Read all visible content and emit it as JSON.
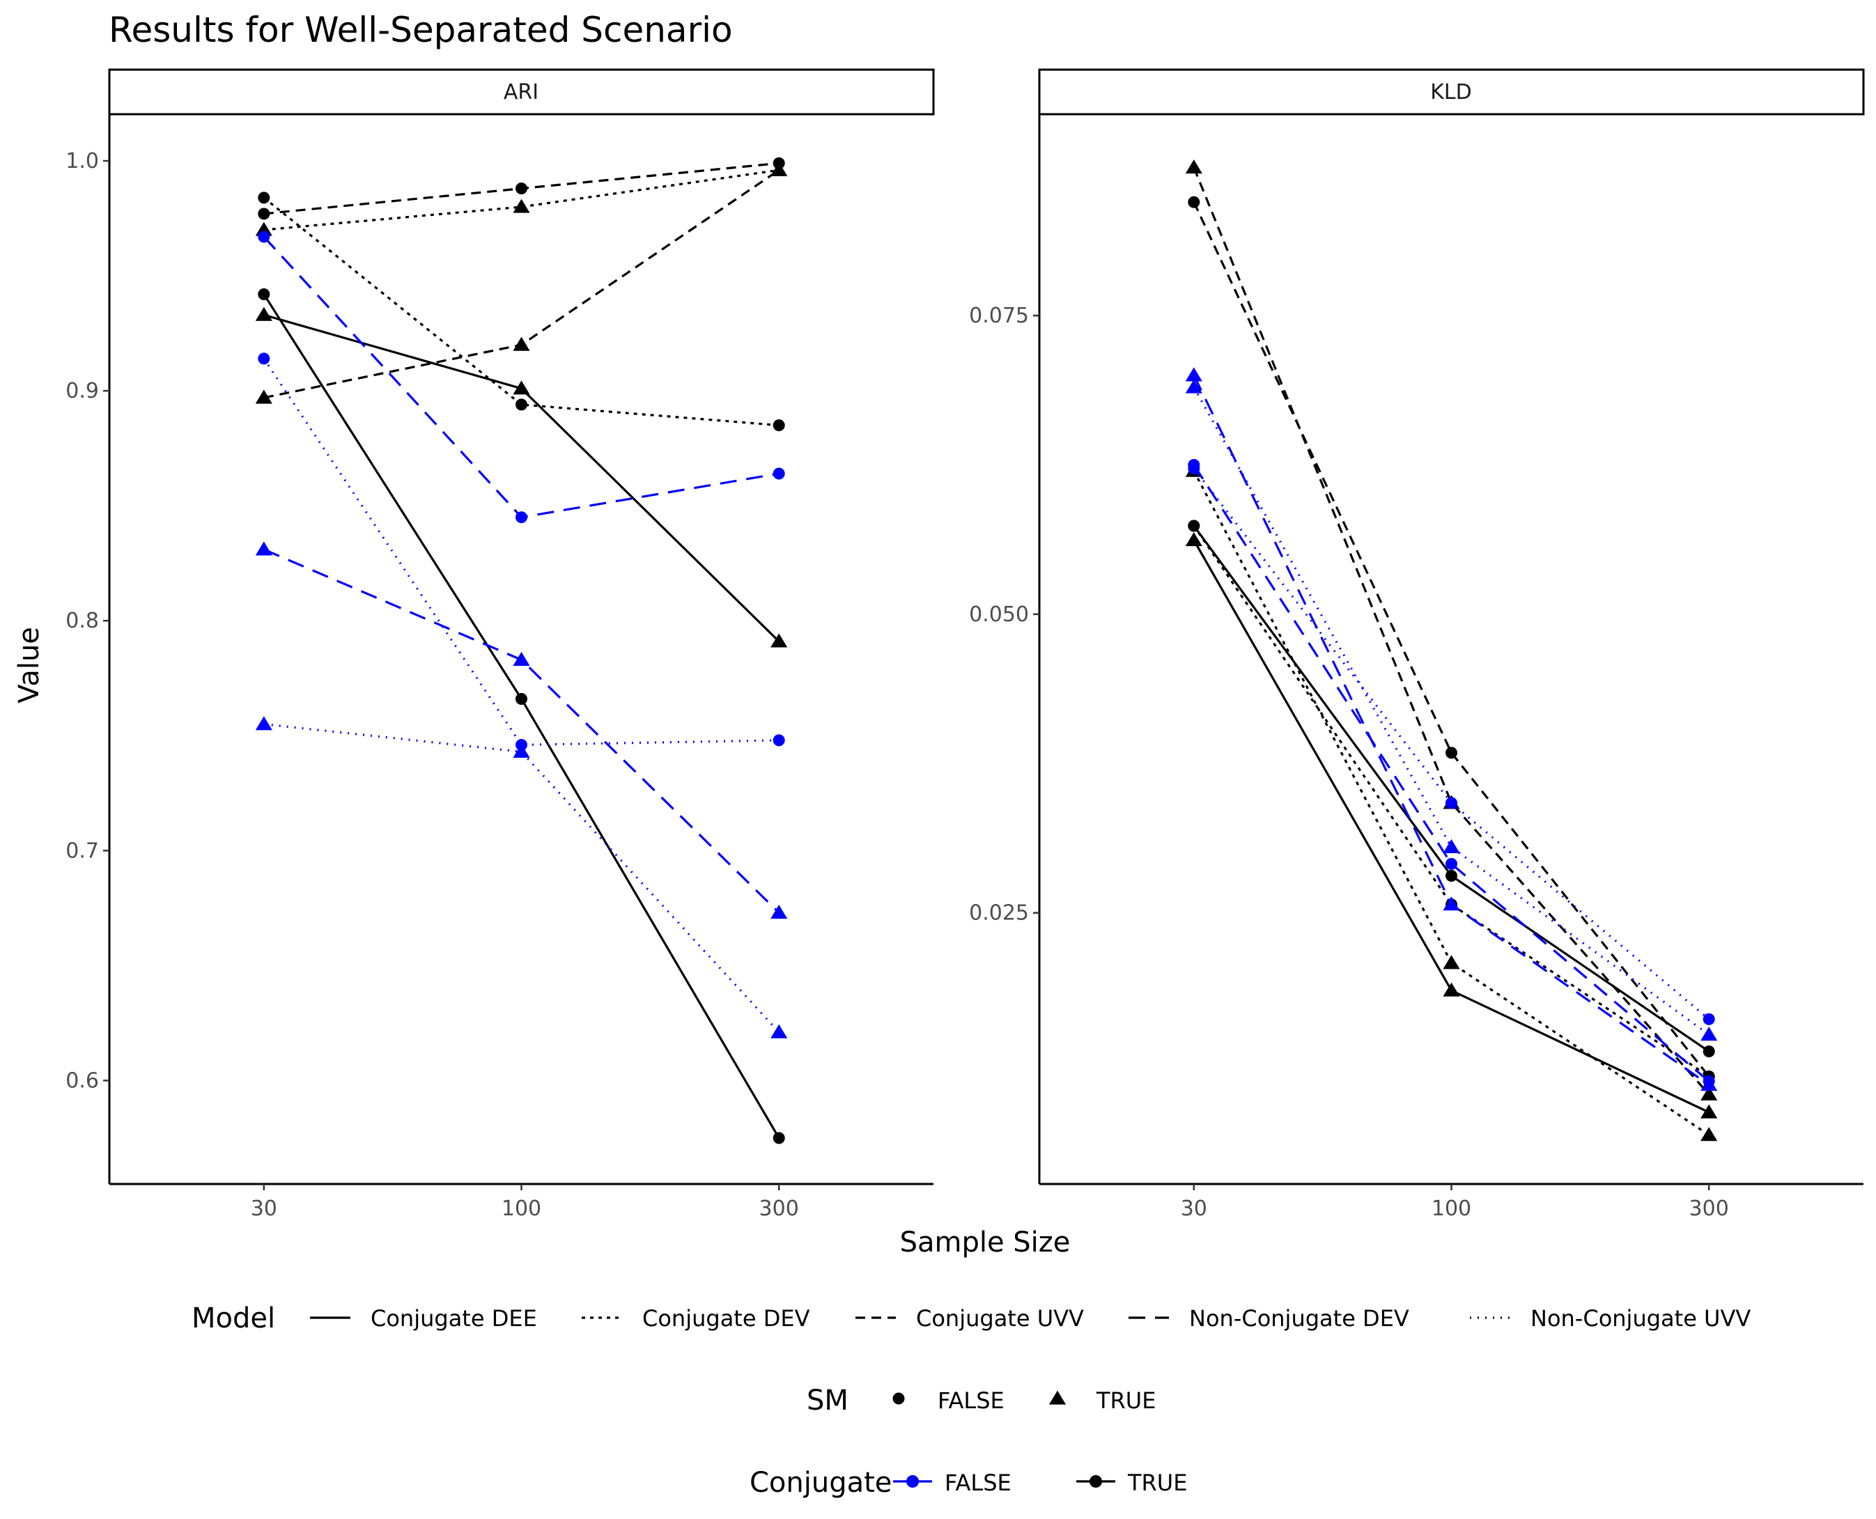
{
  "chart_data": {
    "type": "line",
    "title": "Results for Well-Separated Scenario",
    "xlabel": "Sample Size",
    "ylabel": "Value",
    "x_categories": [
      "30",
      "100",
      "300"
    ],
    "grid": false,
    "legend_position": "bottom",
    "colors": {
      "conjugate_false": "#0000ff",
      "conjugate_true": "#000000"
    },
    "legend": {
      "model": {
        "title": "Model",
        "entries": [
          {
            "label": "Conjugate DEE",
            "linetype": "solid"
          },
          {
            "label": "Conjugate DEV",
            "linetype": "dotted"
          },
          {
            "label": "Conjugate UVV",
            "linetype": "dashed"
          },
          {
            "label": "Non-Conjugate DEV",
            "linetype": "longdash"
          },
          {
            "label": "Non-Conjugate UVV",
            "linetype": "dotted-fine"
          }
        ]
      },
      "sm": {
        "title": "SM",
        "entries": [
          {
            "label": "FALSE",
            "shape": "circle"
          },
          {
            "label": "TRUE",
            "shape": "triangle"
          }
        ]
      },
      "conjugate": {
        "title": "Conjugate",
        "entries": [
          {
            "label": "FALSE",
            "color": "#0000ff"
          },
          {
            "label": "TRUE",
            "color": "#000000"
          }
        ]
      }
    },
    "panels": [
      {
        "strip": "ARI",
        "ylim": [
          0.555,
          1.02
        ],
        "yticks": [
          0.6,
          0.7,
          0.8,
          0.9,
          1.0
        ],
        "ytick_labels": [
          "0.6",
          "0.7",
          "0.8",
          "0.9",
          "1.0"
        ],
        "series": [
          {
            "model": "Conjugate DEE",
            "sm": "FALSE",
            "conjugate": "TRUE",
            "values": [
              0.942,
              0.766,
              0.575
            ]
          },
          {
            "model": "Conjugate DEE",
            "sm": "TRUE",
            "conjugate": "TRUE",
            "values": [
              0.933,
              0.901,
              0.791
            ]
          },
          {
            "model": "Conjugate DEV",
            "sm": "FALSE",
            "conjugate": "TRUE",
            "values": [
              0.984,
              0.894,
              0.885
            ]
          },
          {
            "model": "Conjugate DEV",
            "sm": "TRUE",
            "conjugate": "TRUE",
            "values": [
              0.97,
              0.98,
              0.996
            ]
          },
          {
            "model": "Conjugate UVV",
            "sm": "FALSE",
            "conjugate": "TRUE",
            "values": [
              0.977,
              0.988,
              0.999
            ]
          },
          {
            "model": "Conjugate UVV",
            "sm": "TRUE",
            "conjugate": "TRUE",
            "values": [
              0.897,
              0.92,
              0.996
            ]
          },
          {
            "model": "Non-Conjugate DEV",
            "sm": "FALSE",
            "conjugate": "FALSE",
            "values": [
              0.967,
              0.845,
              0.864
            ]
          },
          {
            "model": "Non-Conjugate DEV",
            "sm": "TRUE",
            "conjugate": "FALSE",
            "values": [
              0.831,
              0.783,
              0.673
            ]
          },
          {
            "model": "Non-Conjugate UVV",
            "sm": "FALSE",
            "conjugate": "FALSE",
            "values": [
              0.914,
              0.746,
              0.748
            ]
          },
          {
            "model": "Non-Conjugate UVV",
            "sm": "TRUE",
            "conjugate": "FALSE",
            "values": [
              0.755,
              0.743,
              0.621
            ]
          }
        ]
      },
      {
        "strip": "KLD",
        "ylim": [
          0.0023,
          0.0918
        ],
        "yticks": [
          0.025,
          0.05,
          0.075
        ],
        "ytick_labels": [
          "0.025",
          "0.050",
          "0.075"
        ],
        "series": [
          {
            "model": "Conjugate DEE",
            "sm": "FALSE",
            "conjugate": "TRUE",
            "values": [
              0.0574,
              0.0281,
              0.0134
            ]
          },
          {
            "model": "Conjugate DEE",
            "sm": "TRUE",
            "conjugate": "TRUE",
            "values": [
              0.0562,
              0.0185,
              0.0083
            ]
          },
          {
            "model": "Conjugate DEV",
            "sm": "FALSE",
            "conjugate": "TRUE",
            "values": [
              0.0574,
              0.0257,
              0.0113
            ]
          },
          {
            "model": "Conjugate DEV",
            "sm": "TRUE",
            "conjugate": "TRUE",
            "values": [
              0.062,
              0.0208,
              0.0064
            ]
          },
          {
            "model": "Conjugate UVV",
            "sm": "FALSE",
            "conjugate": "TRUE",
            "values": [
              0.0845,
              0.0384,
              0.0113
            ]
          },
          {
            "model": "Conjugate UVV",
            "sm": "TRUE",
            "conjugate": "TRUE",
            "values": [
              0.0874,
              0.0342,
              0.0098
            ]
          },
          {
            "model": "Non-Conjugate DEV",
            "sm": "FALSE",
            "conjugate": "FALSE",
            "values": [
              0.0625,
              0.0291,
              0.0109
            ]
          },
          {
            "model": "Non-Conjugate DEV",
            "sm": "TRUE",
            "conjugate": "FALSE",
            "values": [
              0.07,
              0.0257,
              0.0106
            ]
          },
          {
            "model": "Non-Conjugate UVV",
            "sm": "FALSE",
            "conjugate": "FALSE",
            "values": [
              0.0622,
              0.0342,
              0.0161
            ]
          },
          {
            "model": "Non-Conjugate UVV",
            "sm": "TRUE",
            "conjugate": "FALSE",
            "values": [
              0.069,
              0.0305,
              0.0148
            ]
          }
        ]
      }
    ]
  }
}
